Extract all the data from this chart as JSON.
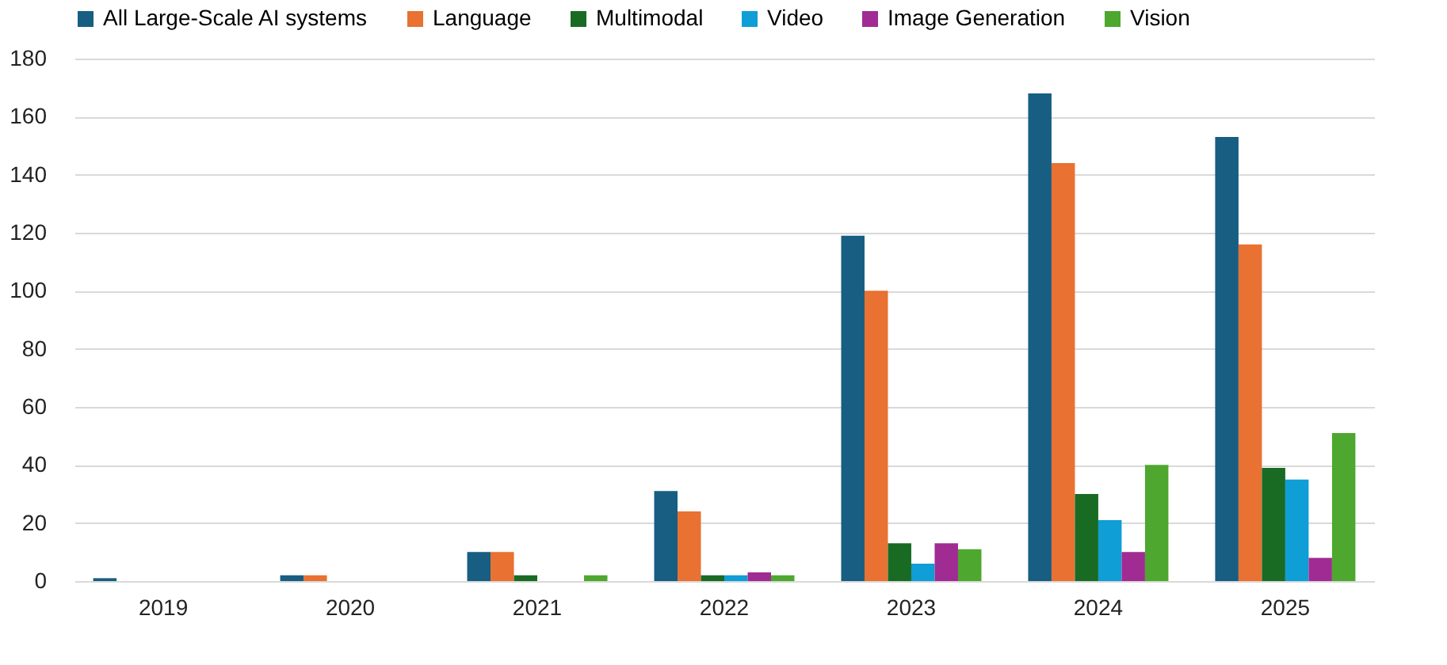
{
  "chart_data": {
    "type": "bar",
    "categories": [
      "2019",
      "2020",
      "2021",
      "2022",
      "2023",
      "2024",
      "2025"
    ],
    "series": [
      {
        "name": "All Large-Scale AI systems",
        "color": "#175e82",
        "values": [
          1,
          2,
          10,
          31,
          119,
          168,
          153
        ]
      },
      {
        "name": "Language",
        "color": "#e97132",
        "values": [
          0,
          2,
          10,
          24,
          100,
          144,
          116
        ]
      },
      {
        "name": "Multimodal",
        "color": "#196b24",
        "values": [
          0,
          0,
          2,
          2,
          13,
          30,
          39
        ]
      },
      {
        "name": "Video",
        "color": "#0f9ed5",
        "values": [
          0,
          0,
          0,
          2,
          6,
          21,
          35
        ]
      },
      {
        "name": "Image Generation",
        "color": "#a02b93",
        "values": [
          0,
          0,
          0,
          3,
          13,
          10,
          8
        ]
      },
      {
        "name": "Vision",
        "color": "#4ea72e",
        "values": [
          0,
          0,
          2,
          2,
          11,
          40,
          51
        ]
      }
    ],
    "ylim": [
      0,
      180
    ],
    "yticks": [
      0,
      20,
      40,
      60,
      80,
      100,
      120,
      140,
      160,
      180
    ],
    "grid": "y",
    "legend": "top"
  }
}
